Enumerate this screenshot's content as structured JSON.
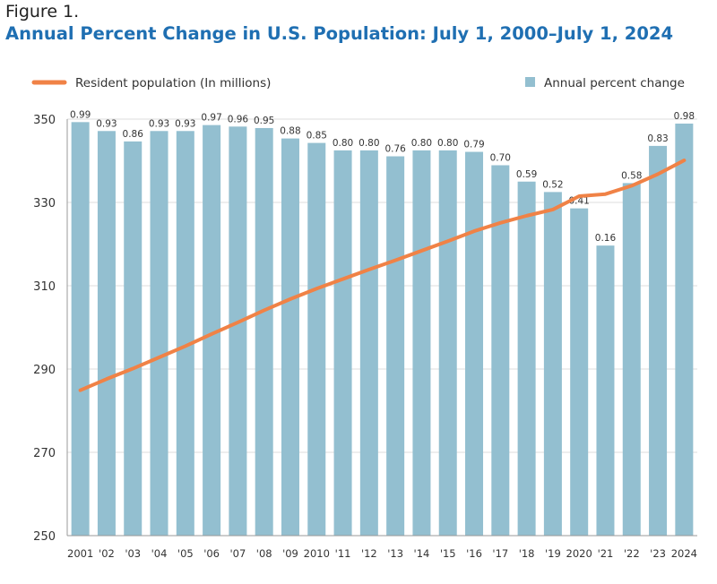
{
  "figure_label": "Figure 1.",
  "chart_data": {
    "type": "bar",
    "title": "Annual Percent Change in U.S. Population: July 1, 2000–July 1, 2024",
    "categories": [
      "2001",
      "'02",
      "'03",
      "'04",
      "'05",
      "'06",
      "'07",
      "'08",
      "'09",
      "2010",
      "'11",
      "'12",
      "'13",
      "'14",
      "'15",
      "'16",
      "'17",
      "'18",
      "'19",
      "2020",
      "'21",
      "'22",
      "'23",
      "2024"
    ],
    "series": [
      {
        "name": "Annual percent change",
        "type": "bar",
        "color": "#93bfd0",
        "values": [
          0.99,
          0.93,
          0.86,
          0.93,
          0.93,
          0.97,
          0.96,
          0.95,
          0.88,
          0.85,
          0.8,
          0.8,
          0.76,
          0.8,
          0.8,
          0.79,
          0.7,
          0.59,
          0.52,
          0.41,
          0.16,
          0.58,
          0.83,
          0.98
        ]
      },
      {
        "name": "Resident population (In millions)",
        "type": "line",
        "color": "#f08246",
        "values": [
          284.9,
          287.6,
          290.1,
          292.8,
          295.5,
          298.4,
          301.2,
          304.1,
          306.8,
          309.3,
          311.6,
          313.9,
          316.1,
          318.4,
          320.7,
          323.1,
          325.1,
          326.8,
          328.3,
          331.5,
          332.0,
          334.0,
          336.8,
          340.1
        ]
      }
    ],
    "yticks": [
      "250",
      "270",
      "290",
      "310",
      "330",
      "350"
    ],
    "ylim": [
      250,
      350
    ],
    "bar_scale_ylim": [
      -1.79,
      1.01
    ],
    "legend": {
      "line_label": "Resident population (In millions)",
      "bar_label": "Annual percent change",
      "placement": "top"
    },
    "grid": true
  }
}
